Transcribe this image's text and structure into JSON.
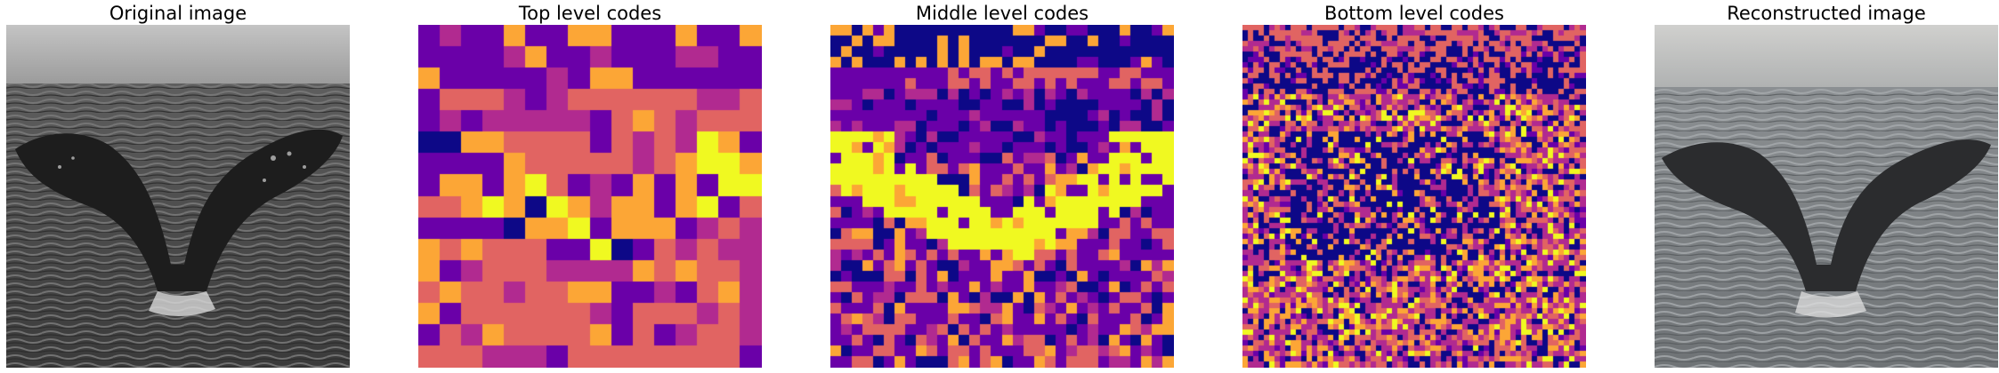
{
  "panels": [
    {
      "title": "Original image",
      "kind": "grayscale photo"
    },
    {
      "title": "Top level codes",
      "kind": "code map",
      "grid": 16
    },
    {
      "title": "Middle level codes",
      "kind": "code map",
      "grid": 32
    },
    {
      "title": "Bottom level codes",
      "kind": "code map",
      "grid": 64
    },
    {
      "title": "Reconstructed image",
      "kind": "grayscale photo"
    }
  ],
  "palette": {
    "indigo": "#0d0887",
    "purple": "#6a00a8",
    "magenta": "#b12a90",
    "salmon": "#e16462",
    "orange": "#fca636",
    "yellow": "#f0f921"
  }
}
